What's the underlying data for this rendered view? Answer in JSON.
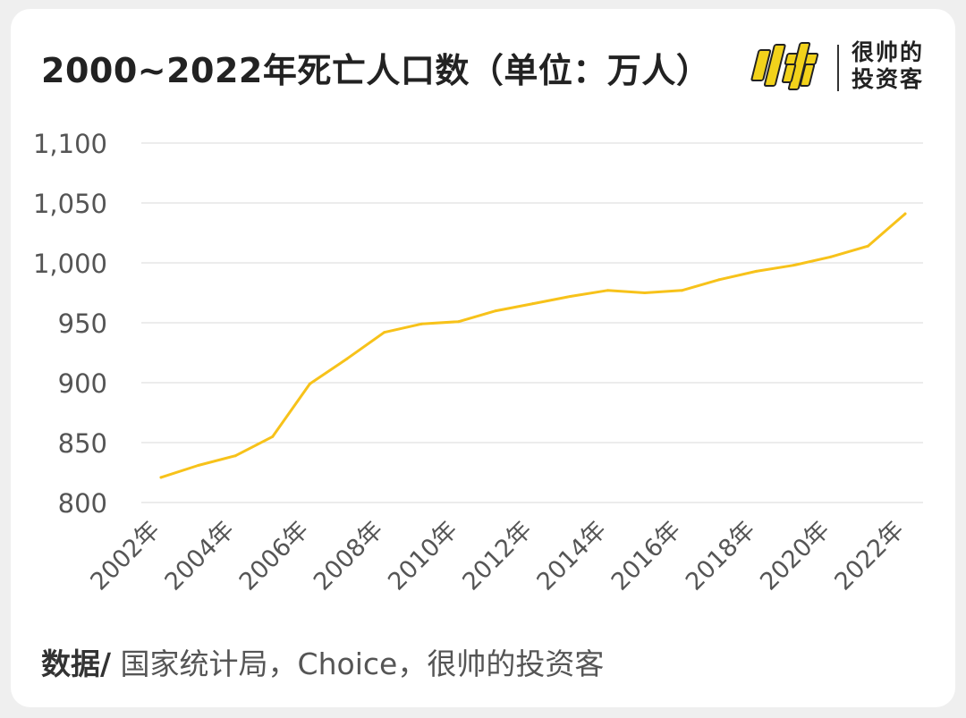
{
  "title": "2000~2022年死亡人口数（单位：万人）",
  "logo": {
    "mark_text": "帅",
    "name_line1": "很帅的",
    "name_line2": "投资客",
    "color": "#f2d21b"
  },
  "footer": {
    "label": "数据/",
    "source": " 国家统计局，Choice，很帅的投资客"
  },
  "chart_data": {
    "type": "line",
    "title": "2000~2022年死亡人口数（单位：万人）",
    "xlabel": "",
    "ylabel": "",
    "x": [
      "2002年",
      "2003年",
      "2004年",
      "2005年",
      "2006年",
      "2007年",
      "2008年",
      "2009年",
      "2010年",
      "2011年",
      "2012年",
      "2013年",
      "2014年",
      "2015年",
      "2016年",
      "2017年",
      "2018年",
      "2019年",
      "2020年",
      "2021年",
      "2022年"
    ],
    "x_tick_labels": [
      "2002年",
      "2004年",
      "2006年",
      "2008年",
      "2010年",
      "2012年",
      "2014年",
      "2016年",
      "2018年",
      "2020年",
      "2022年"
    ],
    "series": [
      {
        "values": [
          821,
          831,
          839,
          855,
          899,
          920,
          942,
          949,
          951,
          960,
          966,
          972,
          977,
          975,
          977,
          986,
          993,
          998,
          1005,
          1014,
          1041
        ],
        "color": "#f7c21a"
      }
    ],
    "ylim": [
      800,
      1100
    ],
    "yticks": [
      800,
      850,
      900,
      950,
      1000,
      1050,
      1100
    ],
    "ytick_labels": [
      "800",
      "850",
      "900",
      "950",
      "1,000",
      "1,050",
      "1,100"
    ],
    "grid": true,
    "legend": "none"
  }
}
